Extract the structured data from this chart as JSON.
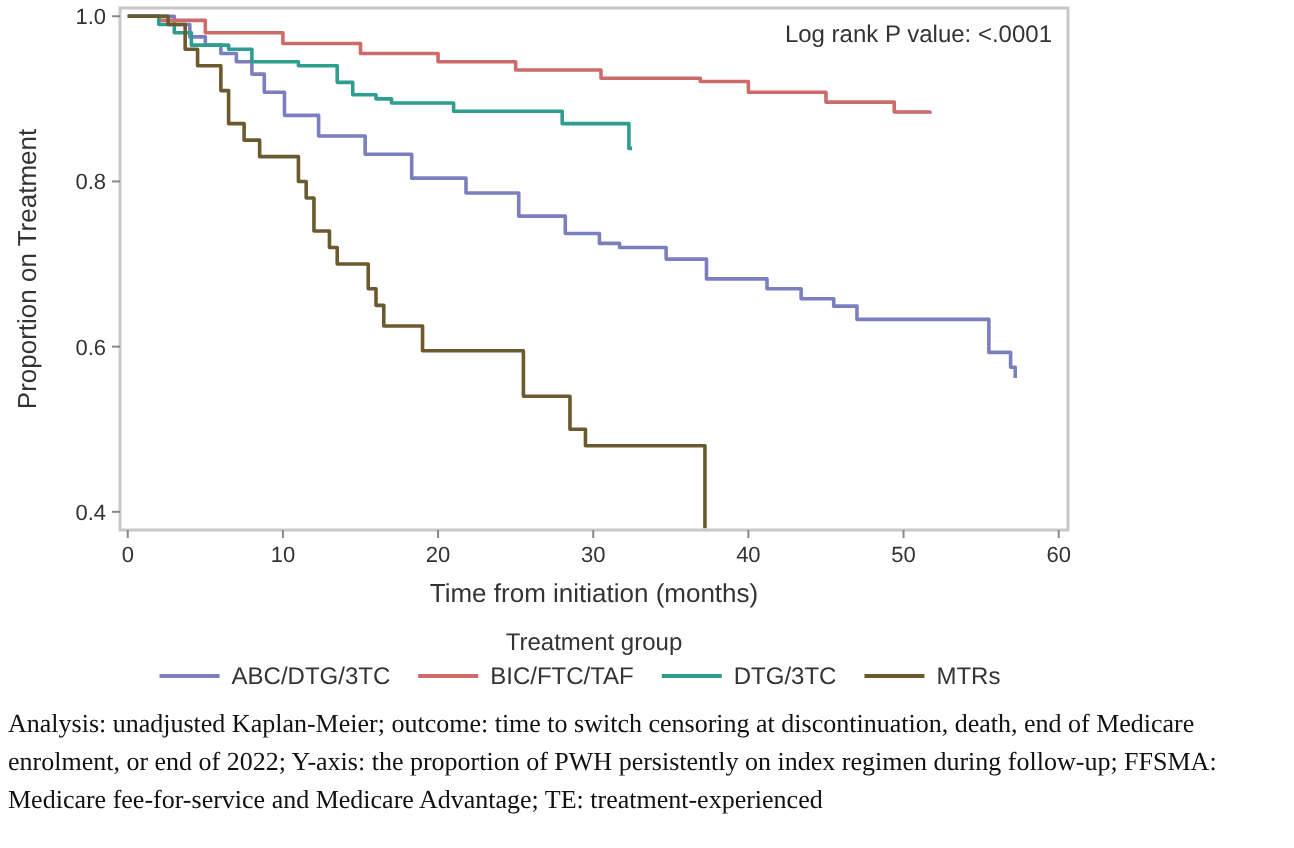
{
  "chart_data": {
    "type": "step",
    "xlabel": "Time from initiation (months)",
    "ylabel": "Proportion on Treatment",
    "legend_title": "Treatment group",
    "legend": "bottom",
    "xlim": [
      -0.5,
      60.6
    ],
    "ylim": [
      0.378,
      1.01
    ],
    "xticks": [
      0,
      10,
      20,
      30,
      40,
      50,
      60
    ],
    "yticks": [
      0.4,
      0.6,
      0.8,
      {
        "value": 1,
        "label": "1.0"
      }
    ],
    "series": [
      {
        "name": "ABC/DTG/3TC",
        "color": "#7b7fc0",
        "x": [
          0,
          2,
          3,
          4,
          5,
          6,
          7,
          8,
          8.8,
          10.1,
          12.3,
          15.3,
          18.3,
          21.8,
          25.2,
          28.2,
          30.4,
          31.7,
          34.7,
          37.3,
          41.2,
          43.4,
          45.5,
          47,
          55.5,
          56.9,
          57.2
        ],
        "values": [
          1,
          1,
          0.99,
          0.975,
          0.965,
          0.955,
          0.945,
          0.93,
          0.908,
          0.88,
          0.855,
          0.833,
          0.804,
          0.786,
          0.758,
          0.737,
          0.725,
          0.72,
          0.706,
          0.682,
          0.67,
          0.658,
          0.649,
          0.633,
          0.593,
          0.575,
          0.562
        ]
      },
      {
        "name": "BIC/FTC/TAF",
        "color": "#cd6b6b",
        "x": [
          0,
          2,
          5,
          10,
          15,
          20,
          25,
          30.5,
          36.9,
          40,
          45,
          49.4,
          51.7
        ],
        "values": [
          1,
          0.995,
          0.98,
          0.967,
          0.955,
          0.945,
          0.935,
          0.925,
          0.921,
          0.908,
          0.896,
          0.884,
          0.882
        ]
      },
      {
        "name": "DTG/3TC",
        "color": "#2e9e8f",
        "x": [
          0,
          2,
          3,
          4.1,
          6.5,
          8,
          11,
          13.5,
          14.5,
          16,
          17,
          21,
          28,
          32.3,
          32.5
        ],
        "values": [
          1,
          0.99,
          0.98,
          0.965,
          0.96,
          0.945,
          0.94,
          0.92,
          0.905,
          0.9,
          0.895,
          0.885,
          0.87,
          0.84,
          0.84
        ]
      },
      {
        "name": "MTRs",
        "color": "#6b5a2e",
        "x": [
          0,
          2.6,
          3.7,
          4.5,
          6,
          6.5,
          7.5,
          8.5,
          11,
          11.5,
          12,
          13,
          13.5,
          15.5,
          16,
          16.5,
          19,
          25.5,
          28.5,
          29.5,
          35.2,
          37.2
        ],
        "values": [
          1,
          0.99,
          0.96,
          0.94,
          0.91,
          0.87,
          0.85,
          0.83,
          0.8,
          0.78,
          0.74,
          0.72,
          0.7,
          0.67,
          0.65,
          0.625,
          0.595,
          0.54,
          0.5,
          0.48,
          0.48,
          0.38
        ]
      }
    ],
    "annotations": [
      "Log rank P value: <.0001",
      "Analysis: unadjusted Kaplan-Meier; outcome: time to switch censoring at discontinuation, death, end of Medicare enrolment, or end of 2022; Y-axis: the proportion of PWH persistently on index regimen during follow-up; FFSMA: Medicare fee-for-service and Medicare Advantage; TE: treatment-experienced"
    ]
  }
}
